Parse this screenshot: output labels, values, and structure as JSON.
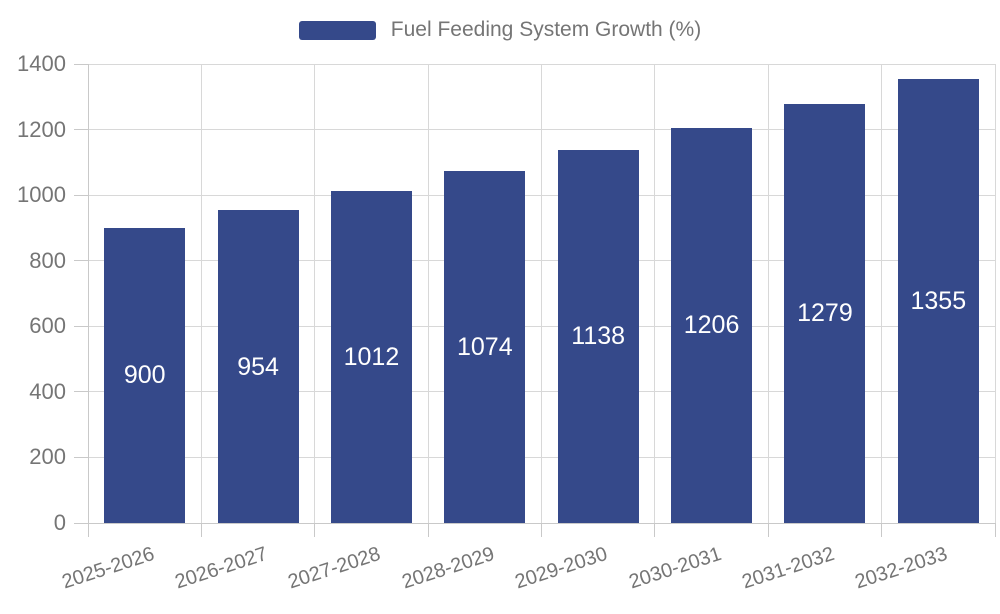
{
  "chart_data": {
    "type": "bar",
    "title": "",
    "legend": {
      "label": "Fuel Feeding System Growth (%)",
      "position": "top-center"
    },
    "categories": [
      "2025-2026",
      "2026-2027",
      "2027-2028",
      "2028-2029",
      "2029-2030",
      "2030-2031",
      "2031-2032",
      "2032-2033"
    ],
    "values": [
      900,
      954,
      1012,
      1074,
      1138,
      1206,
      1279,
      1355
    ],
    "xlabel": "",
    "ylabel": "",
    "ylim": [
      0,
      1400
    ],
    "yticks": [
      0,
      200,
      400,
      600,
      800,
      1000,
      1200,
      1400
    ],
    "grid": true,
    "colors": {
      "bar": "#35498a",
      "bar_label": "#ffffff",
      "axis_text": "#757575",
      "gridline": "#d8d8d8",
      "axis_line": "#c9c9c9"
    }
  }
}
